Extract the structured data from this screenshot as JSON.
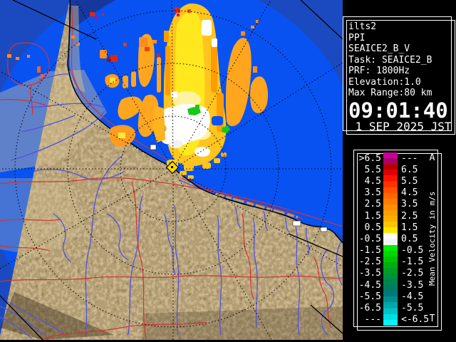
{
  "info_panel": {
    "lines": [
      "ilts2",
      "PPI",
      "SEAICE2_B_V",
      "Task: SEAICE2_B",
      "PRF: 1800Hz",
      "Elevation:1.0",
      "Max Range:80 km"
    ],
    "time": "09:01:40",
    "date": " 1 SEP 2025 JST"
  },
  "legend": {
    "axis_top": "A",
    "axis_bottom": "T",
    "axis_label": "Mean Velocity in m/s",
    "rows": [
      {
        "left": ">6.5",
        "right": "---",
        "c1": "#C8009B",
        "c2": "#A8006B"
      },
      {
        "left": "5.5",
        "right": "6.5",
        "c1": "#B40000",
        "c2": "#DC0000"
      },
      {
        "left": "4.5",
        "right": "5.5",
        "c1": "#F81400",
        "c2": "#FF3200"
      },
      {
        "left": "3.5",
        "right": "4.5",
        "c1": "#FF5000",
        "c2": "#FF6800"
      },
      {
        "left": "2.5",
        "right": "3.5",
        "c1": "#FF7C00",
        "c2": "#FF8E00"
      },
      {
        "left": "1.5",
        "right": "2.5",
        "c1": "#FF9E00",
        "c2": "#FFAE00"
      },
      {
        "left": "0.5",
        "right": "1.5",
        "c1": "#FFC600",
        "c2": "#FFE600"
      },
      {
        "left": "-0.5",
        "right": "0.5",
        "c1": "#FFFFFF",
        "c2": "#F2F2F2"
      },
      {
        "left": "-1.5",
        "right": "-0.5",
        "c1": "#00EC00",
        "c2": "#00D600"
      },
      {
        "left": "-2.5",
        "right": "-1.5",
        "c1": "#00C200",
        "c2": "#00AE10"
      },
      {
        "left": "-3.5",
        "right": "-2.5",
        "c1": "#009E24",
        "c2": "#00923C"
      },
      {
        "left": "-4.5",
        "right": "-3.5",
        "c1": "#008452",
        "c2": "#007C62"
      },
      {
        "left": "-5.5",
        "right": "-4.5",
        "c1": "#007A78",
        "c2": "#008E8C"
      },
      {
        "left": "-6.5",
        "right": "-5.5",
        "c1": "#00A6A8",
        "c2": "#00C2C6"
      },
      {
        "left": "---",
        "right": "<-6.5",
        "c1": "#00DEE2",
        "c2": "#00F6F8"
      }
    ]
  },
  "map": {
    "colors": {
      "sea_in_range": "#0852F2",
      "sea_out_of_range": "#1B4AC0",
      "sea_beam_shadow": "#16389E",
      "land_dark": "#523D1F",
      "land_base": "#947545",
      "land_light": "#B39466",
      "river": "#5353E0",
      "road": "#D13434",
      "graticule": "#000000",
      "site_marker": "#FFD800",
      "echo_strong": "#D82814",
      "echo_orange": "#FF9C00",
      "echo_yellow": "#FFE81E",
      "echo_zero": "#FFFFFF",
      "echo_negative": "#17C817"
    }
  }
}
